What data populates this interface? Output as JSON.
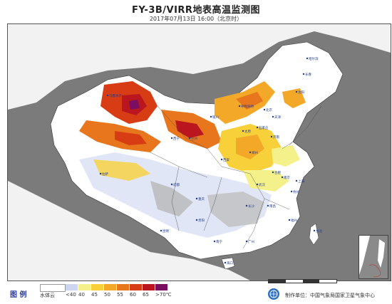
{
  "header": {
    "title": "FY-3B/VIRR地表高温监测图",
    "subtitle": "2017年07月13日 16:00（北京时）"
  },
  "legend": {
    "title": "图 例",
    "items": [
      {
        "label": "水体云",
        "color": "#ffffff"
      },
      {
        "label": "<40",
        "color": "#cdd5f0"
      },
      {
        "label": "40",
        "color": "#f4f08a"
      },
      {
        "label": "45",
        "color": "#f8d13a"
      },
      {
        "label": "50",
        "color": "#f4a828"
      },
      {
        "label": "55",
        "color": "#e8761c"
      },
      {
        "label": "60",
        "color": "#d83c14"
      },
      {
        "label": "65",
        "color": "#bb1620"
      },
      {
        "label": ">70℃",
        "color": "#7a0e62"
      }
    ]
  },
  "footer": {
    "producer": "制作单位：中国气象局国家卫星气象中心",
    "logo": "satellite-center-logo"
  },
  "colors": {
    "background_dark": "#7b7b7b",
    "land_white": "#ffffff",
    "city_label": "#1f3b8c"
  },
  "map": {
    "cities": [
      {
        "name": "哈尔滨"
      },
      {
        "name": "长春"
      },
      {
        "name": "沈阳"
      },
      {
        "name": "呼和浩特"
      },
      {
        "name": "北京"
      },
      {
        "name": "天津"
      },
      {
        "name": "石家庄"
      },
      {
        "name": "太原"
      },
      {
        "name": "济南"
      },
      {
        "name": "银川"
      },
      {
        "name": "兰州"
      },
      {
        "name": "西宁"
      },
      {
        "name": "西安"
      },
      {
        "name": "郑州"
      },
      {
        "name": "合肥"
      },
      {
        "name": "南京"
      },
      {
        "name": "上海"
      },
      {
        "name": "杭州"
      },
      {
        "name": "武汉"
      },
      {
        "name": "长沙"
      },
      {
        "name": "南昌"
      },
      {
        "name": "福州"
      },
      {
        "name": "成都"
      },
      {
        "name": "重庆"
      },
      {
        "name": "贵阳"
      },
      {
        "name": "昆明"
      },
      {
        "name": "南宁"
      },
      {
        "name": "广州"
      },
      {
        "name": "台北"
      },
      {
        "name": "海口"
      },
      {
        "name": "拉萨"
      },
      {
        "name": "乌鲁木齐"
      }
    ]
  }
}
